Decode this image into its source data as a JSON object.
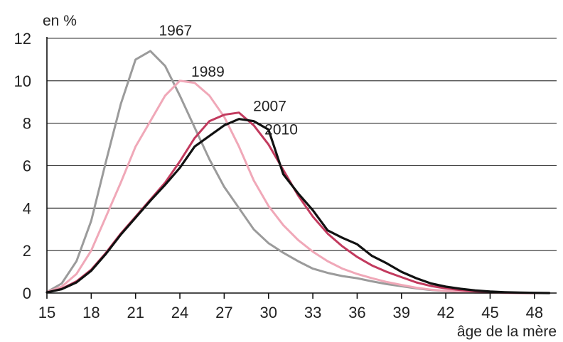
{
  "chart_data": {
    "type": "line",
    "ylabel": "en %",
    "xlabel": "âge de la mère",
    "xlim": [
      15,
      49.5
    ],
    "ylim": [
      0,
      12
    ],
    "x_ticks": [
      15,
      18,
      21,
      24,
      27,
      30,
      33,
      36,
      39,
      42,
      45,
      48
    ],
    "y_ticks": [
      0,
      2,
      4,
      6,
      8,
      10,
      12
    ],
    "grid": "horizontal",
    "legend": "inline labels next to curves",
    "series": [
      {
        "name": "1967",
        "color": "#9b9b9b",
        "x": [
          15,
          16,
          17,
          18,
          19,
          20,
          21,
          22,
          23,
          24,
          25,
          26,
          27,
          28,
          29,
          30,
          31,
          32,
          33,
          34,
          35,
          36,
          37,
          38,
          39,
          40,
          41,
          42,
          43,
          44,
          45,
          46,
          47,
          48,
          49
        ],
        "y": [
          0.05,
          0.45,
          1.5,
          3.4,
          6.2,
          8.9,
          11.0,
          11.4,
          10.7,
          9.3,
          7.8,
          6.3,
          5.0,
          4.0,
          3.0,
          2.35,
          1.9,
          1.5,
          1.15,
          0.95,
          0.8,
          0.7,
          0.55,
          0.42,
          0.32,
          0.22,
          0.14,
          0.09,
          0.05,
          0.03,
          0.02,
          0.01,
          0.0,
          0.0,
          0.0
        ]
      },
      {
        "name": "1989",
        "color": "#f0a8b8",
        "x": [
          15,
          16,
          17,
          18,
          19,
          20,
          21,
          22,
          23,
          24,
          25,
          26,
          27,
          28,
          29,
          30,
          31,
          32,
          33,
          34,
          35,
          36,
          37,
          38,
          39,
          40,
          41,
          42,
          43,
          44,
          45,
          46,
          47,
          48,
          49
        ],
        "y": [
          0.05,
          0.3,
          0.9,
          2.0,
          3.6,
          5.2,
          6.9,
          8.1,
          9.3,
          10.0,
          9.9,
          9.3,
          8.3,
          6.9,
          5.3,
          4.1,
          3.2,
          2.5,
          1.95,
          1.5,
          1.15,
          0.9,
          0.7,
          0.52,
          0.38,
          0.25,
          0.16,
          0.1,
          0.06,
          0.03,
          0.02,
          0.01,
          0.0,
          0.0,
          0.0
        ]
      },
      {
        "name": "2007",
        "color": "#c23a5e",
        "x": [
          15,
          16,
          17,
          18,
          19,
          20,
          21,
          22,
          23,
          24,
          25,
          26,
          27,
          28,
          29,
          30,
          31,
          32,
          33,
          34,
          35,
          36,
          37,
          38,
          39,
          40,
          41,
          42,
          43,
          44,
          45,
          46,
          47,
          48,
          49
        ],
        "y": [
          0.03,
          0.2,
          0.55,
          1.1,
          1.9,
          2.8,
          3.6,
          4.4,
          5.2,
          6.2,
          7.3,
          8.1,
          8.4,
          8.5,
          7.9,
          7.0,
          5.8,
          4.6,
          3.6,
          2.8,
          2.2,
          1.7,
          1.3,
          1.0,
          0.75,
          0.5,
          0.33,
          0.22,
          0.14,
          0.08,
          0.05,
          0.02,
          0.01,
          0.0,
          0.0
        ]
      },
      {
        "name": "2010",
        "color": "#111111",
        "x": [
          15,
          16,
          17,
          18,
          19,
          20,
          21,
          22,
          23,
          24,
          25,
          26,
          27,
          28,
          29,
          30,
          31,
          32,
          33,
          34,
          35,
          36,
          37,
          38,
          39,
          40,
          41,
          42,
          43,
          44,
          45,
          46,
          47,
          48,
          49
        ],
        "y": [
          0.03,
          0.18,
          0.5,
          1.05,
          1.85,
          2.75,
          3.55,
          4.35,
          5.1,
          5.9,
          6.9,
          7.4,
          7.9,
          8.2,
          8.1,
          7.7,
          5.6,
          4.7,
          3.9,
          2.95,
          2.6,
          2.3,
          1.75,
          1.4,
          1.0,
          0.7,
          0.45,
          0.3,
          0.2,
          0.12,
          0.07,
          0.04,
          0.02,
          0.01,
          0.0
        ]
      }
    ]
  }
}
